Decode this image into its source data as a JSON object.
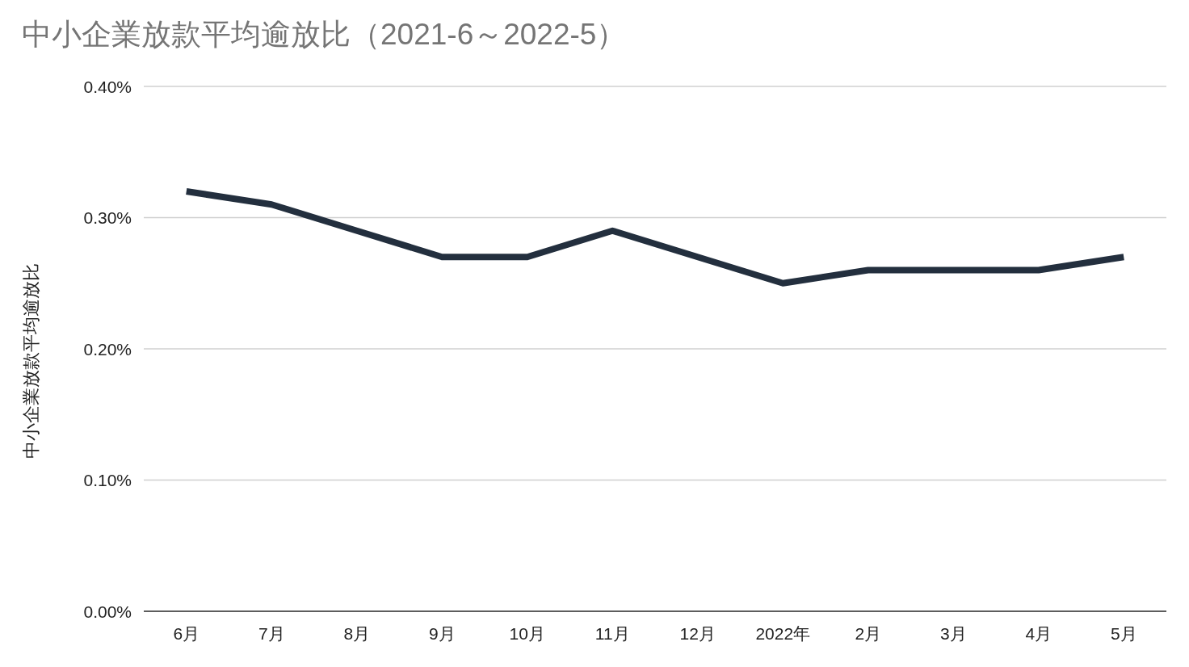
{
  "chart_data": {
    "type": "line",
    "title": "中小企業放款平均逾放比（2021-6～2022-5）",
    "ylabel": "中小企業放款平均逾放比",
    "categories": [
      "6月",
      "7月",
      "8月",
      "9月",
      "10月",
      "11月",
      "12月",
      "2022年",
      "2月",
      "3月",
      "4月",
      "5月"
    ],
    "series": [
      {
        "color": "#232f3e",
        "values": [
          0.32,
          0.31,
          0.29,
          0.27,
          0.27,
          0.29,
          0.27,
          0.25,
          0.26,
          0.26,
          0.26,
          0.27
        ]
      }
    ],
    "ylim": [
      0,
      0.4
    ],
    "yticks": [
      {
        "value": 0,
        "label": "0.00%"
      },
      {
        "value": 0.1,
        "label": "0.10%"
      },
      {
        "value": 0.2,
        "label": "0.20%"
      },
      {
        "value": 0.3,
        "label": "0.30%"
      },
      {
        "value": 0.4,
        "label": "0.40%"
      }
    ],
    "grid": "y"
  }
}
